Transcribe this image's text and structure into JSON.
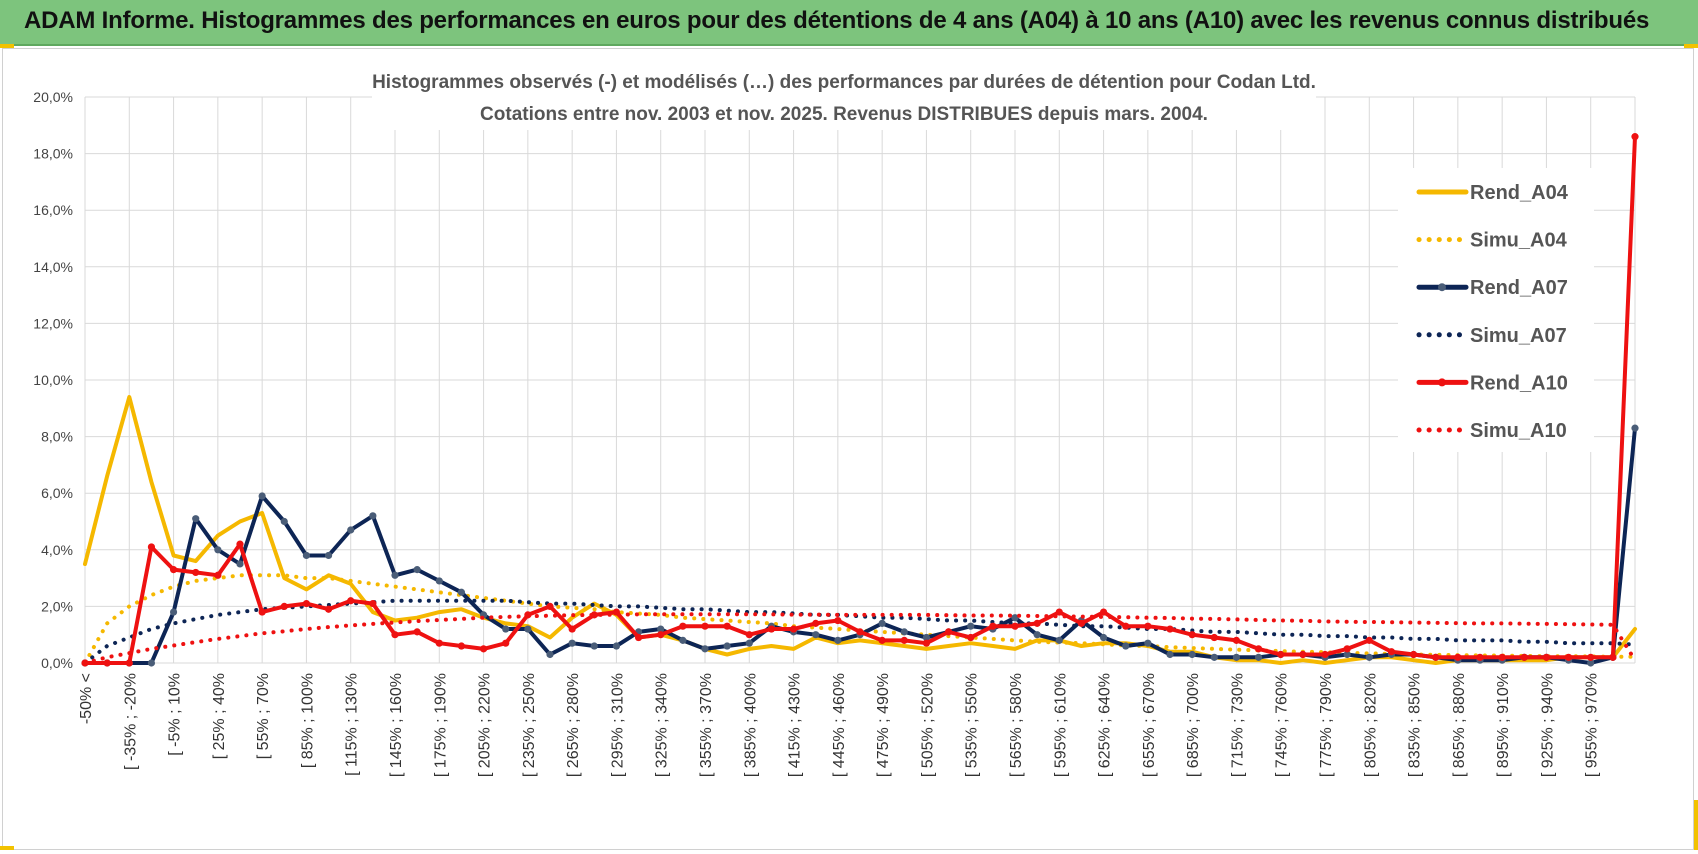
{
  "header": {
    "title": "ADAM Informe. Histogrammes des performances en euros pour des détentions de 4 ans (A04) à 10 ans (A10) avec les revenus connus distribués"
  },
  "colors": {
    "banner": "#7dc47d",
    "A04": "#f5b800",
    "A07": "#0d2555",
    "A10": "#ee1111",
    "accent": "#f2c200"
  },
  "chart_data": {
    "type": "line",
    "title": "Histogrammes observés (-) et modélisés (…) des performances par durées de détention pour Codan Ltd.",
    "subtitle": "Cotations entre nov. 2003 et nov. 2025. Revenus DISTRIBUES depuis mars. 2004.",
    "ylim": [
      0,
      20
    ],
    "yticks": [
      "0,0%",
      "2,0%",
      "4,0%",
      "6,0%",
      "8,0%",
      "10,0%",
      "12,0%",
      "14,0%",
      "16,0%",
      "18,0%",
      "20,0%"
    ],
    "tick_labels": [
      "-50% <",
      "[ -35% ; -20%",
      "[ -5% ; 10%",
      "[ 25% ; 40%",
      "[ 55% ; 70%",
      "[ 85% ; 100%",
      "[ 115% ; 130%",
      "[ 145% ; 160%",
      "[ 175% ; 190%",
      "[ 205% ; 220%",
      "[ 235% ; 250%",
      "[ 265% ; 280%",
      "[ 295% ; 310%",
      "[ 325% ; 340%",
      "[ 355% ; 370%",
      "[ 385% ; 400%",
      "[ 415% ; 430%",
      "[ 445% ; 460%",
      "[ 475% ; 490%",
      "[ 505% ; 520%",
      "[ 535% ; 550%",
      "[ 565% ; 580%",
      "[ 595% ; 610%",
      "[ 625% ; 640%",
      "[ 655% ; 670%",
      "[ 685% ; 700%",
      "[ 715% ; 730%",
      "[ 745% ; 760%",
      "[ 775% ; 790%",
      "[ 805% ; 820%",
      "[ 835% ; 850%",
      "[ 865% ; 880%",
      "[ 895% ; 910%",
      "[ 925% ; 940%",
      "[ 955% ; 970%"
    ],
    "legend_position": "right",
    "grid": true,
    "series": [
      {
        "name": "Rend_A04",
        "style": "solid",
        "color": "#f5b800",
        "markers": false,
        "values": [
          3.5,
          6.6,
          9.4,
          6.4,
          3.8,
          3.6,
          4.5,
          5.0,
          5.3,
          3.0,
          2.6,
          3.1,
          2.8,
          1.8,
          1.5,
          1.6,
          1.8,
          1.9,
          1.6,
          1.4,
          1.3,
          0.9,
          1.6,
          2.1,
          1.7,
          0.9,
          1.0,
          0.8,
          0.5,
          0.3,
          0.5,
          0.6,
          0.5,
          0.9,
          0.7,
          0.8,
          0.7,
          0.6,
          0.5,
          0.6,
          0.7,
          0.6,
          0.5,
          0.8,
          0.8,
          0.6,
          0.7,
          0.7,
          0.6,
          0.4,
          0.4,
          0.2,
          0.1,
          0.1,
          0.0,
          0.1,
          0.0,
          0.1,
          0.2,
          0.2,
          0.1,
          0.0,
          0.1,
          0.1,
          0.1,
          0.1,
          0.1,
          0.2,
          0.2,
          0.2,
          1.2
        ]
      },
      {
        "name": "Simu_A04",
        "style": "dotted",
        "color": "#f5b800",
        "markers": false,
        "values": [
          0.0,
          1.4,
          2.0,
          2.4,
          2.7,
          2.9,
          3.0,
          3.1,
          3.1,
          3.1,
          3.0,
          3.0,
          2.9,
          2.8,
          2.7,
          2.6,
          2.5,
          2.4,
          2.3,
          2.2,
          2.1,
          2.0,
          1.95,
          1.9,
          1.8,
          1.75,
          1.7,
          1.6,
          1.55,
          1.5,
          1.45,
          1.4,
          1.3,
          1.25,
          1.2,
          1.15,
          1.1,
          1.05,
          1.0,
          0.95,
          0.9,
          0.85,
          0.8,
          0.75,
          0.72,
          0.7,
          0.66,
          0.62,
          0.6,
          0.56,
          0.53,
          0.5,
          0.47,
          0.45,
          0.42,
          0.4,
          0.38,
          0.36,
          0.34,
          0.32,
          0.3,
          0.29,
          0.28,
          0.27,
          0.26,
          0.25,
          0.24,
          0.24,
          0.23,
          0.22,
          0.22
        ]
      },
      {
        "name": "Rend_A07",
        "style": "solid",
        "color": "#0d2555",
        "markers": true,
        "values": [
          0.0,
          0.0,
          0.0,
          0.0,
          1.8,
          5.1,
          4.0,
          3.5,
          5.9,
          5.0,
          3.8,
          3.8,
          4.7,
          5.2,
          3.1,
          3.3,
          2.9,
          2.5,
          1.7,
          1.2,
          1.2,
          0.3,
          0.7,
          0.6,
          0.6,
          1.1,
          1.2,
          0.8,
          0.5,
          0.6,
          0.7,
          1.3,
          1.1,
          1.0,
          0.8,
          1.0,
          1.4,
          1.1,
          0.9,
          1.1,
          1.3,
          1.2,
          1.6,
          1.0,
          0.8,
          1.5,
          0.9,
          0.6,
          0.7,
          0.3,
          0.3,
          0.2,
          0.2,
          0.2,
          0.3,
          0.3,
          0.2,
          0.3,
          0.2,
          0.3,
          0.3,
          0.2,
          0.1,
          0.1,
          0.1,
          0.2,
          0.2,
          0.1,
          0.0,
          0.2,
          8.3
        ]
      },
      {
        "name": "Simu_A07",
        "style": "dotted",
        "color": "#0d2555",
        "markers": false,
        "values": [
          0.0,
          0.6,
          0.9,
          1.2,
          1.4,
          1.55,
          1.7,
          1.8,
          1.9,
          1.95,
          2.0,
          2.05,
          2.1,
          2.15,
          2.2,
          2.2,
          2.2,
          2.2,
          2.2,
          2.2,
          2.15,
          2.1,
          2.1,
          2.05,
          2.0,
          2.0,
          1.95,
          1.9,
          1.9,
          1.85,
          1.8,
          1.8,
          1.75,
          1.7,
          1.7,
          1.65,
          1.6,
          1.6,
          1.55,
          1.5,
          1.5,
          1.45,
          1.4,
          1.4,
          1.35,
          1.3,
          1.3,
          1.25,
          1.2,
          1.2,
          1.15,
          1.1,
          1.1,
          1.05,
          1.0,
          1.0,
          0.95,
          0.95,
          0.9,
          0.9,
          0.85,
          0.85,
          0.8,
          0.8,
          0.8,
          0.75,
          0.75,
          0.7,
          0.7,
          0.7,
          0.65
        ]
      },
      {
        "name": "Rend_A10",
        "style": "solid",
        "color": "#ee1111",
        "markers": true,
        "values": [
          0.0,
          0.0,
          0.0,
          4.1,
          3.3,
          3.2,
          3.1,
          4.2,
          1.8,
          2.0,
          2.1,
          1.9,
          2.2,
          2.1,
          1.0,
          1.1,
          0.7,
          0.6,
          0.5,
          0.7,
          1.7,
          2.0,
          1.2,
          1.7,
          1.8,
          0.9,
          1.0,
          1.3,
          1.3,
          1.3,
          1.0,
          1.2,
          1.2,
          1.4,
          1.5,
          1.1,
          0.8,
          0.8,
          0.7,
          1.1,
          0.9,
          1.3,
          1.3,
          1.4,
          1.8,
          1.4,
          1.8,
          1.3,
          1.3,
          1.2,
          1.0,
          0.9,
          0.8,
          0.5,
          0.3,
          0.3,
          0.3,
          0.5,
          0.8,
          0.4,
          0.3,
          0.2,
          0.2,
          0.2,
          0.2,
          0.2,
          0.2,
          0.2,
          0.2,
          0.2,
          18.6
        ]
      },
      {
        "name": "Simu_A10",
        "style": "dotted",
        "color": "#ee1111",
        "markers": false,
        "values": [
          0.0,
          0.2,
          0.35,
          0.5,
          0.62,
          0.74,
          0.85,
          0.95,
          1.05,
          1.12,
          1.2,
          1.27,
          1.33,
          1.38,
          1.43,
          1.48,
          1.52,
          1.56,
          1.6,
          1.63,
          1.65,
          1.67,
          1.69,
          1.7,
          1.71,
          1.72,
          1.72,
          1.72,
          1.72,
          1.72,
          1.72,
          1.72,
          1.71,
          1.71,
          1.7,
          1.7,
          1.7,
          1.7,
          1.7,
          1.69,
          1.68,
          1.68,
          1.67,
          1.66,
          1.65,
          1.64,
          1.63,
          1.62,
          1.6,
          1.59,
          1.57,
          1.56,
          1.54,
          1.52,
          1.5,
          1.49,
          1.47,
          1.46,
          1.45,
          1.44,
          1.43,
          1.42,
          1.41,
          1.4,
          1.4,
          1.39,
          1.38,
          1.37,
          1.36,
          1.35,
          0.1
        ]
      }
    ]
  }
}
